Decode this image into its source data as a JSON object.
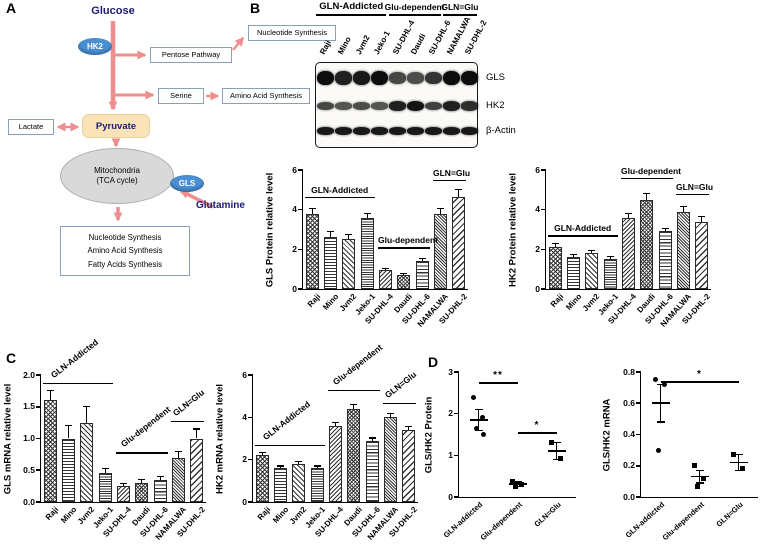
{
  "panels": {
    "a": "A",
    "b": "B",
    "c": "C",
    "d": "D"
  },
  "colors": {
    "arrow": "#ef8e8e",
    "enzyme_blue": "#4a8fd3",
    "pyruvate_bg": "#fbe3b8",
    "mito_gray": "#d9d9d9",
    "navy": "#1c1c72"
  },
  "pathway": {
    "glucose": "Glucose",
    "hk2": "HK2",
    "pentose": "Pentose Pathway",
    "nucleotide": "Nucleotide Synthesis",
    "serine": "Serine",
    "amino": "Amino Acid Synthesis",
    "pyruvate": "Pyruvate",
    "lactate": "Lactate",
    "mito_line1": "Mitochondria",
    "mito_line2": "(TCA cycle)",
    "gls": "GLS",
    "glutamine": "Glutamine",
    "outputs": [
      "Nucleotide Synthesis",
      "Amino Acid Synthesis",
      "Fatty Acids Synthesis"
    ]
  },
  "blot": {
    "groups": [
      {
        "label": "GLN-Addicted",
        "from": 0,
        "to": 3
      },
      {
        "label": "Glu-dependent",
        "from": 4,
        "to": 6
      },
      {
        "label": "GLN=Glu",
        "from": 7,
        "to": 8
      }
    ],
    "lanes": [
      "Raji",
      "Mino",
      "Jvm2",
      "Jeko-1",
      "SU-DHL-4",
      "Daudi",
      "SU-DHL-6",
      "NAMALWA",
      "SU-DHL-2"
    ],
    "rows": [
      {
        "label": "GLS",
        "intensities": [
          1,
          0.85,
          0.9,
          1,
          0.55,
          0.5,
          0.7,
          1,
          1
        ]
      },
      {
        "label": "HK2",
        "intensities": [
          0.55,
          0.45,
          0.5,
          0.45,
          0.85,
          0.95,
          0.6,
          0.85,
          0.75
        ]
      },
      {
        "label": "β-Actin",
        "intensities": [
          0.9,
          0.9,
          0.9,
          0.9,
          0.9,
          0.9,
          0.9,
          0.9,
          0.9
        ]
      }
    ]
  },
  "chart_data": [
    {
      "id": "gls_protein",
      "type": "bar",
      "title": "",
      "ylabel": "GLS Protein relative level",
      "ylim": [
        0,
        6
      ],
      "yticks": [
        "0",
        "2",
        "4",
        "6"
      ],
      "categories": [
        "Raji",
        "Mino",
        "Jvm2",
        "Jeko-1",
        "SU-DHL-4",
        "Daudi",
        "SU-DHL-6",
        "NAMALWA",
        "SU-DHL-2"
      ],
      "values": [
        3.8,
        2.6,
        2.5,
        3.6,
        0.95,
        0.7,
        1.4,
        3.8,
        4.65
      ],
      "errors": [
        0.25,
        0.3,
        0.25,
        0.2,
        0.1,
        0.08,
        0.15,
        0.25,
        0.35
      ],
      "groups": [
        {
          "label": "GLN-Addicted",
          "from": 0,
          "to": 3,
          "y": 4.65
        },
        {
          "label": "Glu-dependent",
          "from": 4,
          "to": 6,
          "y": 2.1
        },
        {
          "label": "GLN=Glu",
          "from": 7,
          "to": 8,
          "y": 5.5
        }
      ]
    },
    {
      "id": "hk2_protein",
      "type": "bar",
      "title": "",
      "ylabel": "HK2 Protein relative level",
      "ylim": [
        0,
        6
      ],
      "yticks": [
        "0",
        "2",
        "4",
        "6"
      ],
      "categories": [
        "Raji",
        "Mino",
        "Jvm2",
        "Jeko-1",
        "SU-DHL-4",
        "Daudi",
        "SU-DHL-6",
        "NAMALWA",
        "SU-DHL-2"
      ],
      "values": [
        2.1,
        1.6,
        1.8,
        1.5,
        3.6,
        4.5,
        2.9,
        3.9,
        3.4
      ],
      "errors": [
        0.2,
        0.15,
        0.15,
        0.15,
        0.2,
        0.3,
        0.15,
        0.25,
        0.25
      ],
      "groups": [
        {
          "label": "GLN-Addicted",
          "from": 0,
          "to": 3,
          "y": 2.7
        },
        {
          "label": "Glu-dependent",
          "from": 4,
          "to": 6,
          "y": 5.6
        },
        {
          "label": "GLN=Glu",
          "from": 7,
          "to": 8,
          "y": 4.8
        }
      ]
    },
    {
      "id": "gls_mrna",
      "type": "bar",
      "title": "",
      "ylabel": "GLS mRNA relative level",
      "ylim": [
        0,
        2
      ],
      "yticks": [
        "0.0",
        "0.5",
        "1.0",
        "1.5",
        "2.0"
      ],
      "categories": [
        "Raji",
        "Mino",
        "Jvm2",
        "Jeko-1",
        "SU-DHL-4",
        "Daudi",
        "SU-DHL-6",
        "NAMALWA",
        "SU-DHL-2"
      ],
      "values": [
        1.6,
        1.0,
        1.25,
        0.45,
        0.25,
        0.3,
        0.35,
        0.7,
        1.0
      ],
      "errors": [
        0.15,
        0.2,
        0.25,
        0.08,
        0.04,
        0.05,
        0.05,
        0.1,
        0.15
      ],
      "groups": [
        {
          "label": "GLN-Addicted",
          "from": 0,
          "to": 3,
          "y": 1.88
        },
        {
          "label": "Glu-dependent",
          "from": 4,
          "to": 6,
          "y": 0.78
        },
        {
          "label": "GLN=Glu",
          "from": 7,
          "to": 8,
          "y": 1.28
        }
      ]
    },
    {
      "id": "hk2_mrna",
      "type": "bar",
      "title": "",
      "ylabel": "HK2 mRNA relative level",
      "ylim": [
        0,
        6
      ],
      "yticks": [
        "0",
        "2",
        "4",
        "6"
      ],
      "categories": [
        "Raji",
        "Mino",
        "Jvm2",
        "Jeko-1",
        "SU-DHL-4",
        "Daudi",
        "SU-DHL-6",
        "NAMALWA",
        "SU-DHL-2"
      ],
      "values": [
        2.2,
        1.6,
        1.8,
        1.6,
        3.6,
        4.4,
        2.9,
        4.0,
        3.4
      ],
      "errors": [
        0.15,
        0.1,
        0.12,
        0.1,
        0.15,
        0.2,
        0.12,
        0.2,
        0.15
      ],
      "groups": [
        {
          "label": "GLN-Addicted",
          "from": 0,
          "to": 3,
          "y": 2.7
        },
        {
          "label": "Glu-dependent",
          "from": 4,
          "to": 6,
          "y": 5.3
        },
        {
          "label": "GLN=Glu",
          "from": 7,
          "to": 8,
          "y": 4.7
        }
      ]
    },
    {
      "id": "ratio_protein",
      "type": "scatter",
      "title": "",
      "ylabel": "GLS/HK2 Protein",
      "ylim": [
        0,
        3
      ],
      "yticks": [
        "0",
        "1",
        "2",
        "3"
      ],
      "categories": [
        "GLN-addicted",
        "Glu-dependent",
        "GLN=Glu"
      ],
      "points": [
        [
          2.4,
          1.9,
          1.65,
          1.5
        ],
        [
          0.38,
          0.3,
          0.25
        ],
        [
          1.3,
          0.92
        ]
      ],
      "means": [
        1.85,
        0.31,
        1.1
      ],
      "sems": [
        0.25,
        0.05,
        0.2
      ],
      "markers": [
        "circle",
        "square",
        "square"
      ],
      "sig": [
        {
          "label": "**",
          "from": 0,
          "to": 1,
          "y": 2.75
        },
        {
          "label": "*",
          "from": 1,
          "to": 2,
          "y": 1.55
        }
      ]
    },
    {
      "id": "ratio_mrna",
      "type": "scatter",
      "title": "",
      "ylabel": "GLS/HK2 mRNA",
      "ylim": [
        0,
        0.8
      ],
      "yticks": [
        "0.0",
        "0.2",
        "0.4",
        "0.6",
        "0.8"
      ],
      "categories": [
        "GLN-addicted",
        "Glu-dependent",
        "GLN=Glu"
      ],
      "points": [
        [
          0.75,
          0.72,
          0.3
        ],
        [
          0.2,
          0.12,
          0.07
        ],
        [
          0.27,
          0.18
        ]
      ],
      "means": [
        0.6,
        0.13,
        0.22
      ],
      "sems": [
        0.12,
        0.04,
        0.05
      ],
      "markers": [
        "circle",
        "square",
        "square"
      ],
      "sig": [
        {
          "label": "*",
          "from": 0,
          "to": 2,
          "y": 0.74
        }
      ]
    }
  ]
}
